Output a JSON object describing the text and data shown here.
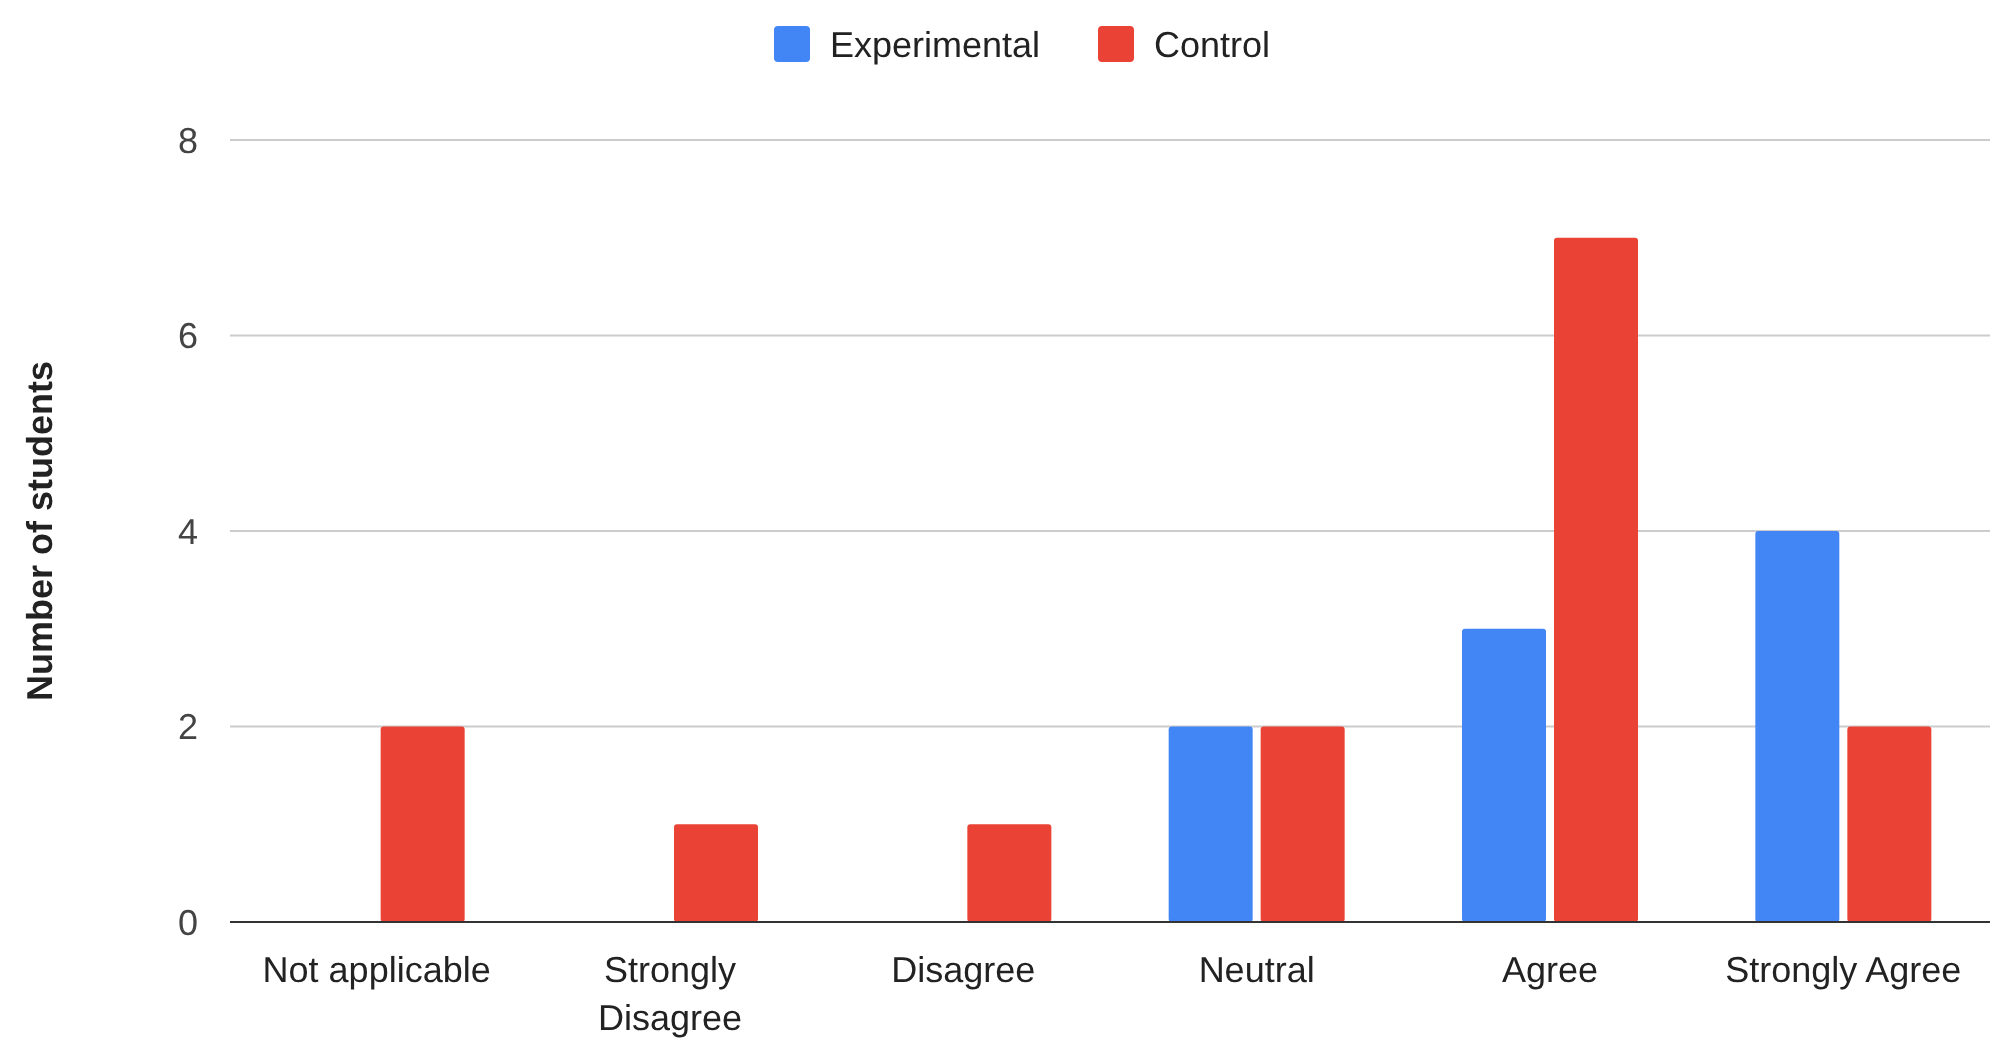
{
  "chart_data": {
    "type": "bar",
    "ylabel": "Number of students",
    "categories": [
      "Not applicable",
      "Strongly Disagree",
      "Disagree",
      "Neutral",
      "Agree",
      "Strongly Agree"
    ],
    "series": [
      {
        "name": "Experimental",
        "color": "#4285f4",
        "values": [
          0,
          0,
          0,
          2,
          3,
          4
        ]
      },
      {
        "name": "Control",
        "color": "#ea4335",
        "values": [
          2,
          1,
          1,
          2,
          7,
          2
        ]
      }
    ],
    "ylim": [
      0,
      8
    ],
    "yticks": [
      0,
      2,
      4,
      6,
      8
    ],
    "grid": "y",
    "legend": "top"
  }
}
